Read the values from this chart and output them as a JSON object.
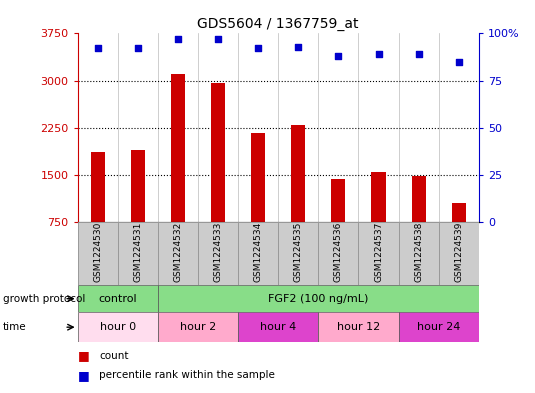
{
  "title": "GDS5604 / 1367759_at",
  "samples": [
    "GSM1224530",
    "GSM1224531",
    "GSM1224532",
    "GSM1224533",
    "GSM1224534",
    "GSM1224535",
    "GSM1224536",
    "GSM1224537",
    "GSM1224538",
    "GSM1224539"
  ],
  "counts": [
    1870,
    1890,
    3100,
    2960,
    2160,
    2290,
    1440,
    1550,
    1490,
    1060
  ],
  "percentiles": [
    92,
    92,
    97,
    97,
    92,
    93,
    88,
    89,
    89,
    85
  ],
  "ylim_left": [
    750,
    3750
  ],
  "ylim_right": [
    0,
    100
  ],
  "yticks_left": [
    750,
    1500,
    2250,
    3000,
    3750
  ],
  "yticks_right": [
    0,
    25,
    50,
    75,
    100
  ],
  "bar_color": "#cc0000",
  "dot_color": "#0000cc",
  "bar_bottom": 750,
  "bar_width": 0.35,
  "protocol_groups": [
    {
      "label": "control",
      "color": "#88dd88",
      "start": 0,
      "end": 2
    },
    {
      "label": "FGF2 (100 ng/mL)",
      "color": "#88dd88",
      "start": 2,
      "end": 10
    }
  ],
  "time_groups": [
    {
      "label": "hour 0",
      "color": "#ffddee",
      "start": 0,
      "end": 2
    },
    {
      "label": "hour 2",
      "color": "#ffaacc",
      "start": 2,
      "end": 4
    },
    {
      "label": "hour 4",
      "color": "#dd44cc",
      "start": 4,
      "end": 6
    },
    {
      "label": "hour 12",
      "color": "#ffaacc",
      "start": 6,
      "end": 8
    },
    {
      "label": "hour 24",
      "color": "#dd44cc",
      "start": 8,
      "end": 10
    }
  ],
  "sample_bg_color": "#cccccc",
  "sample_border_color": "#999999",
  "legend_count_color": "#cc0000",
  "legend_dot_color": "#0000cc"
}
